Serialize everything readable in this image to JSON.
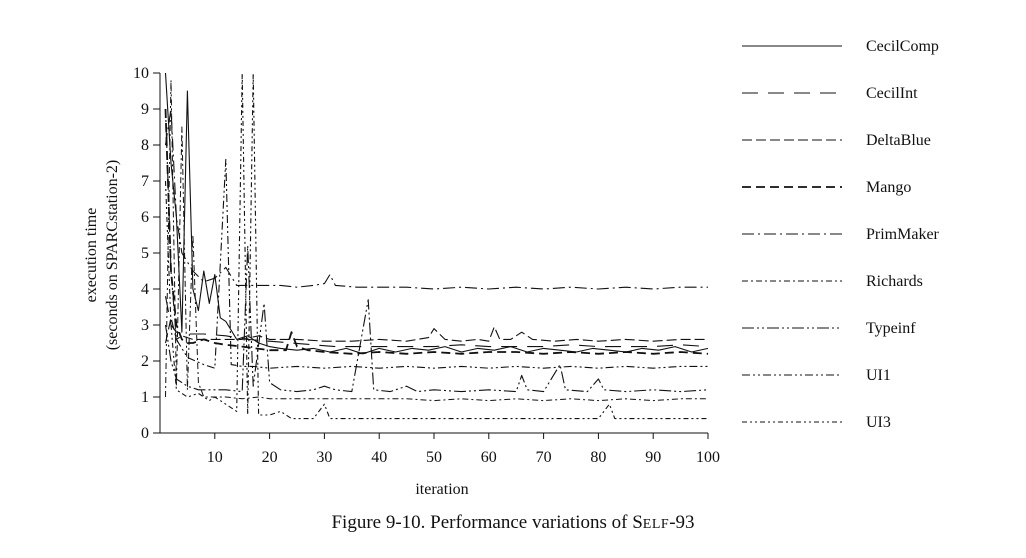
{
  "chart_data": {
    "type": "line",
    "xlabel": "iteration",
    "ylabel_line1": "execution time",
    "ylabel_line2": "(seconds on SPARCstation-2)",
    "xlim": [
      0,
      100
    ],
    "ylim": [
      0,
      10
    ],
    "x_ticks": [
      10,
      20,
      30,
      40,
      50,
      60,
      70,
      80,
      90,
      100
    ],
    "y_ticks": [
      0,
      1,
      2,
      3,
      4,
      5,
      6,
      7,
      8,
      9,
      10
    ],
    "legend_position": "right",
    "series": [
      {
        "name": "CecilComp",
        "dash": "solid",
        "points": [
          [
            1,
            10
          ],
          [
            2,
            7.5
          ],
          [
            3,
            6
          ],
          [
            4,
            2.8
          ],
          [
            5,
            9.5
          ],
          [
            6,
            4
          ],
          [
            7,
            3.4
          ],
          [
            8,
            4.5
          ],
          [
            9,
            3.6
          ],
          [
            10,
            4.4
          ],
          [
            11,
            3.2
          ],
          [
            12,
            3.1
          ],
          [
            14,
            2.6
          ],
          [
            16,
            2.7
          ],
          [
            18,
            2.5
          ],
          [
            20,
            2.4
          ],
          [
            22,
            2.35
          ],
          [
            25,
            2.3
          ],
          [
            28,
            2.35
          ],
          [
            31,
            2.25
          ],
          [
            34,
            2.35
          ],
          [
            37,
            2.2
          ],
          [
            40,
            2.35
          ],
          [
            43,
            2.25
          ],
          [
            46,
            2.35
          ],
          [
            49,
            2.3
          ],
          [
            52,
            2.4
          ],
          [
            55,
            2.25
          ],
          [
            58,
            2.35
          ],
          [
            61,
            2.3
          ],
          [
            64,
            2.4
          ],
          [
            67,
            2.25
          ],
          [
            70,
            2.35
          ],
          [
            73,
            2.3
          ],
          [
            76,
            2.25
          ],
          [
            79,
            2.35
          ],
          [
            82,
            2.3
          ],
          [
            85,
            2.25
          ],
          [
            88,
            2.35
          ],
          [
            91,
            2.3
          ],
          [
            94,
            2.4
          ],
          [
            97,
            2.25
          ],
          [
            100,
            2.35
          ]
        ]
      },
      {
        "name": "CecilInt",
        "dash": "long-dash",
        "points": [
          [
            1,
            3.8
          ],
          [
            2,
            3.0
          ],
          [
            3,
            2.8
          ],
          [
            5,
            2.75
          ],
          [
            8,
            2.75
          ],
          [
            12,
            2.7
          ],
          [
            16,
            2.6
          ],
          [
            20,
            2.55
          ],
          [
            24,
            2.5
          ],
          [
            28,
            2.45
          ],
          [
            32,
            2.4
          ],
          [
            36,
            2.4
          ],
          [
            40,
            2.4
          ],
          [
            45,
            2.4
          ],
          [
            50,
            2.4
          ],
          [
            55,
            2.45
          ],
          [
            60,
            2.4
          ],
          [
            65,
            2.4
          ],
          [
            70,
            2.4
          ],
          [
            75,
            2.45
          ],
          [
            80,
            2.4
          ],
          [
            85,
            2.4
          ],
          [
            90,
            2.4
          ],
          [
            95,
            2.45
          ],
          [
            100,
            2.4
          ]
        ]
      },
      {
        "name": "DeltaBlue",
        "dash": "medium-dash",
        "points": [
          [
            1,
            2.5
          ],
          [
            2,
            3.2
          ],
          [
            3,
            2.6
          ],
          [
            4,
            2.7
          ],
          [
            6,
            2.6
          ],
          [
            10,
            2.6
          ],
          [
            15,
            2.6
          ],
          [
            18,
            2.7
          ],
          [
            20,
            2.6
          ],
          [
            25,
            2.6
          ],
          [
            30,
            2.55
          ],
          [
            35,
            2.55
          ],
          [
            40,
            2.6
          ],
          [
            45,
            2.55
          ],
          [
            49,
            2.65
          ],
          [
            50,
            2.9
          ],
          [
            52,
            2.6
          ],
          [
            55,
            2.55
          ],
          [
            58,
            2.6
          ],
          [
            60,
            2.55
          ],
          [
            61,
            2.95
          ],
          [
            62,
            2.6
          ],
          [
            64,
            2.6
          ],
          [
            66,
            2.8
          ],
          [
            68,
            2.6
          ],
          [
            72,
            2.55
          ],
          [
            76,
            2.6
          ],
          [
            80,
            2.55
          ],
          [
            85,
            2.6
          ],
          [
            90,
            2.55
          ],
          [
            95,
            2.6
          ],
          [
            100,
            2.6
          ]
        ]
      },
      {
        "name": "Mango",
        "dash": "bold-dash",
        "points": [
          [
            1,
            9
          ],
          [
            2,
            4.5
          ],
          [
            3,
            3
          ],
          [
            4,
            2.6
          ],
          [
            5,
            2.5
          ],
          [
            6,
            2.5
          ],
          [
            8,
            2.6
          ],
          [
            10,
            2.5
          ],
          [
            12,
            2.45
          ],
          [
            15,
            2.4
          ],
          [
            20,
            2.3
          ],
          [
            23,
            2.3
          ],
          [
            24,
            2.8
          ],
          [
            25,
            2.4
          ],
          [
            27,
            2.3
          ],
          [
            30,
            2.25
          ],
          [
            35,
            2.2
          ],
          [
            40,
            2.25
          ],
          [
            45,
            2.2
          ],
          [
            50,
            2.25
          ],
          [
            55,
            2.2
          ],
          [
            60,
            2.25
          ],
          [
            65,
            2.25
          ],
          [
            70,
            2.2
          ],
          [
            75,
            2.25
          ],
          [
            80,
            2.2
          ],
          [
            85,
            2.25
          ],
          [
            90,
            2.2
          ],
          [
            95,
            2.25
          ],
          [
            100,
            2.2
          ]
        ]
      },
      {
        "name": "PrimMaker",
        "dash": "dash-dot",
        "points": [
          [
            1,
            8
          ],
          [
            2,
            9
          ],
          [
            3,
            6
          ],
          [
            4,
            5
          ],
          [
            6,
            4.5
          ],
          [
            8,
            4.2
          ],
          [
            10,
            4.3
          ],
          [
            12,
            4.6
          ],
          [
            14,
            4.1
          ],
          [
            16,
            4.1
          ],
          [
            18,
            4.1
          ],
          [
            20,
            4.1
          ],
          [
            22,
            4.1
          ],
          [
            25,
            4.05
          ],
          [
            28,
            4.1
          ],
          [
            30,
            4.15
          ],
          [
            31,
            4.4
          ],
          [
            32,
            4.1
          ],
          [
            36,
            4.05
          ],
          [
            40,
            4.05
          ],
          [
            45,
            4.05
          ],
          [
            50,
            4.0
          ],
          [
            55,
            4.05
          ],
          [
            60,
            4.0
          ],
          [
            65,
            4.05
          ],
          [
            70,
            4.0
          ],
          [
            75,
            4.05
          ],
          [
            80,
            4.0
          ],
          [
            85,
            4.05
          ],
          [
            90,
            4.0
          ],
          [
            95,
            4.05
          ],
          [
            100,
            4.05
          ]
        ]
      },
      {
        "name": "Richards",
        "dash": "dash-dot-dot",
        "points": [
          [
            1,
            1.0
          ],
          [
            2,
            9.8
          ],
          [
            3,
            1.3
          ],
          [
            4,
            8.5
          ],
          [
            5,
            1.2
          ],
          [
            6,
            5.5
          ],
          [
            7,
            1.4
          ],
          [
            8,
            1.0
          ],
          [
            10,
            1.0
          ],
          [
            12,
            1.0
          ],
          [
            15,
            0.95
          ],
          [
            18,
            1.0
          ],
          [
            20,
            0.95
          ],
          [
            25,
            0.95
          ],
          [
            30,
            0.95
          ],
          [
            35,
            0.95
          ],
          [
            40,
            0.95
          ],
          [
            45,
            0.95
          ],
          [
            50,
            0.9
          ],
          [
            55,
            0.95
          ],
          [
            60,
            0.9
          ],
          [
            65,
            0.95
          ],
          [
            70,
            0.9
          ],
          [
            75,
            0.95
          ],
          [
            80,
            0.9
          ],
          [
            85,
            0.95
          ],
          [
            90,
            0.9
          ],
          [
            95,
            0.95
          ],
          [
            100,
            0.95
          ]
        ]
      },
      {
        "name": "Typeinf",
        "dash": "dash-dot-dot-long",
        "points": [
          [
            1,
            3.0
          ],
          [
            2,
            2.0
          ],
          [
            3,
            1.5
          ],
          [
            5,
            1.3
          ],
          [
            7,
            1.2
          ],
          [
            10,
            1.2
          ],
          [
            12,
            1.2
          ],
          [
            15,
            1.15
          ],
          [
            16,
            5.2
          ],
          [
            17,
            1.3
          ],
          [
            19,
            3.6
          ],
          [
            20,
            1.4
          ],
          [
            22,
            1.2
          ],
          [
            25,
            1.15
          ],
          [
            28,
            1.2
          ],
          [
            30,
            1.3
          ],
          [
            32,
            1.2
          ],
          [
            35,
            1.15
          ],
          [
            38,
            3.7
          ],
          [
            39,
            1.2
          ],
          [
            42,
            1.15
          ],
          [
            45,
            1.3
          ],
          [
            47,
            1.15
          ],
          [
            50,
            1.2
          ],
          [
            55,
            1.15
          ],
          [
            60,
            1.2
          ],
          [
            65,
            1.15
          ],
          [
            66,
            1.6
          ],
          [
            67,
            1.2
          ],
          [
            70,
            1.15
          ],
          [
            73,
            1.9
          ],
          [
            74,
            1.2
          ],
          [
            78,
            1.15
          ],
          [
            80,
            1.5
          ],
          [
            81,
            1.2
          ],
          [
            85,
            1.15
          ],
          [
            90,
            1.2
          ],
          [
            95,
            1.15
          ],
          [
            100,
            1.2
          ]
        ]
      },
      {
        "name": "UI1",
        "dash": "dash-dot-dot-short",
        "points": [
          [
            1,
            9
          ],
          [
            2,
            4.5
          ],
          [
            3,
            2.6
          ],
          [
            5,
            2.1
          ],
          [
            8,
            1.9
          ],
          [
            10,
            1.8
          ],
          [
            12,
            7.6
          ],
          [
            13,
            1.9
          ],
          [
            15,
            1.85
          ],
          [
            17,
            1.85
          ],
          [
            20,
            1.8
          ],
          [
            25,
            1.85
          ],
          [
            30,
            1.8
          ],
          [
            35,
            1.85
          ],
          [
            40,
            1.8
          ],
          [
            45,
            1.85
          ],
          [
            50,
            1.8
          ],
          [
            55,
            1.85
          ],
          [
            60,
            1.8
          ],
          [
            65,
            1.85
          ],
          [
            70,
            1.8
          ],
          [
            75,
            1.85
          ],
          [
            80,
            1.8
          ],
          [
            85,
            1.85
          ],
          [
            90,
            1.8
          ],
          [
            95,
            1.85
          ],
          [
            100,
            1.85
          ]
        ]
      },
      {
        "name": "UI3",
        "dash": "dash-dot-dot-dense",
        "points": [
          [
            1,
            7
          ],
          [
            2,
            3
          ],
          [
            3,
            1.2
          ],
          [
            5,
            1.0
          ],
          [
            7,
            1.1
          ],
          [
            9,
            0.9
          ],
          [
            10,
            1.0
          ],
          [
            12,
            0.8
          ],
          [
            14,
            0.6
          ],
          [
            15,
            10
          ],
          [
            16,
            0.5
          ],
          [
            17,
            10
          ],
          [
            18,
            0.5
          ],
          [
            20,
            0.5
          ],
          [
            22,
            0.6
          ],
          [
            24,
            0.4
          ],
          [
            26,
            0.4
          ],
          [
            28,
            0.4
          ],
          [
            30,
            0.8
          ],
          [
            31,
            0.4
          ],
          [
            35,
            0.4
          ],
          [
            40,
            0.4
          ],
          [
            45,
            0.4
          ],
          [
            50,
            0.4
          ],
          [
            55,
            0.4
          ],
          [
            60,
            0.4
          ],
          [
            65,
            0.4
          ],
          [
            70,
            0.4
          ],
          [
            75,
            0.4
          ],
          [
            80,
            0.4
          ],
          [
            82,
            0.8
          ],
          [
            83,
            0.4
          ],
          [
            85,
            0.4
          ],
          [
            90,
            0.4
          ],
          [
            95,
            0.4
          ],
          [
            100,
            0.4
          ]
        ]
      }
    ]
  },
  "caption": {
    "prefix": "Figure 9-10.  Performance variations of ",
    "sc_first": "S",
    "sc_rest": "ELF",
    "suffix": "-93"
  }
}
